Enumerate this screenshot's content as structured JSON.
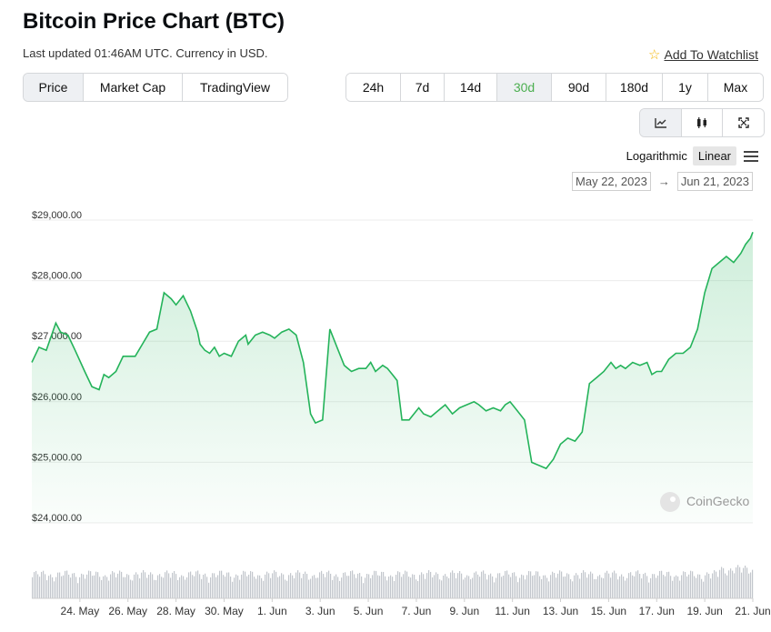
{
  "header": {
    "title": "Bitcoin Price Chart (BTC)",
    "updated": "Last updated 01:46AM UTC. Currency in USD.",
    "watchlist_label": "Add To Watchlist"
  },
  "tabs": [
    {
      "label": "Price",
      "active": true
    },
    {
      "label": "Market Cap",
      "active": false
    },
    {
      "label": "TradingView",
      "active": false
    }
  ],
  "ranges": [
    {
      "label": "24h",
      "active": false
    },
    {
      "label": "7d",
      "active": false
    },
    {
      "label": "14d",
      "active": false
    },
    {
      "label": "30d",
      "active": true
    },
    {
      "label": "90d",
      "active": false
    },
    {
      "label": "180d",
      "active": false
    },
    {
      "label": "1y",
      "active": false
    },
    {
      "label": "Max",
      "active": false
    }
  ],
  "tools": {
    "line_icon": "line-chart-icon",
    "candle_icon": "candlestick-icon",
    "expand_icon": "fullscreen-icon"
  },
  "scale": {
    "log_label": "Logarithmic",
    "linear_label": "Linear",
    "selected": "Linear"
  },
  "date_range": {
    "from": "May 22, 2023",
    "to": "Jun 21, 2023"
  },
  "watermark": "CoinGecko",
  "colors": {
    "line": "#24b35a",
    "fill": "#24b35a",
    "active_range": "#4caf50",
    "volume": "#c2c6cc"
  },
  "chart_data": {
    "type": "area",
    "title": "",
    "ylim": [
      24000,
      29000
    ],
    "y_ticks": [
      29000,
      28000,
      27000,
      26000,
      25000,
      24000
    ],
    "y_tick_labels": [
      "$29,000.00",
      "$28,000.00",
      "$27,000.00",
      "$26,000.00",
      "$25,000.00",
      "$24,000.00"
    ],
    "x_tick_labels": [
      "24. May",
      "26. May",
      "28. May",
      "30. May",
      "1. Jun",
      "3. Jun",
      "5. Jun",
      "7. Jun",
      "9. Jun",
      "11. Jun",
      "13. Jun",
      "15. Jun",
      "17. Jun",
      "19. Jun",
      "21. Jun"
    ],
    "x_tick_days": [
      2,
      4,
      6,
      8,
      10,
      12,
      14,
      16,
      18,
      20,
      22,
      24,
      26,
      28,
      30
    ],
    "series": [
      {
        "x": [
          0,
          0.3,
          0.6,
          1.0,
          1.2,
          1.5,
          1.8,
          2.2,
          2.5,
          2.8,
          3.0,
          3.2,
          3.5,
          3.8,
          4.0,
          4.3,
          4.6,
          4.9,
          5.2,
          5.5,
          5.8,
          6.0,
          6.3,
          6.6,
          6.9,
          7.0,
          7.2,
          7.4,
          7.6,
          7.8,
          8.0,
          8.3,
          8.6,
          8.9,
          9.0,
          9.3,
          9.6,
          9.9,
          10.1,
          10.4,
          10.7,
          11.0,
          11.3,
          11.6,
          11.8,
          12.1,
          12.4,
          12.7,
          13.0,
          13.3,
          13.6,
          13.9,
          14.1,
          14.3,
          14.6,
          14.8,
          15.0,
          15.2,
          15.4,
          15.7,
          15.9,
          16.1,
          16.3,
          16.6,
          16.9,
          17.2,
          17.5,
          17.8,
          18.1,
          18.4,
          18.6,
          18.9,
          19.2,
          19.5,
          19.7,
          19.9,
          20.2,
          20.5,
          20.8,
          21.1,
          21.4,
          21.7,
          22.0,
          22.3,
          22.6,
          22.9,
          23.2,
          23.5,
          23.8,
          24.1,
          24.3,
          24.5,
          24.7,
          25.0,
          25.3,
          25.6,
          25.8,
          26.0,
          26.2,
          26.5,
          26.8,
          27.1,
          27.4,
          27.7,
          28.0,
          28.3,
          28.6,
          28.9,
          29.2,
          29.5,
          29.7,
          29.9,
          30.0
        ],
        "y": [
          26650,
          26900,
          26850,
          27300,
          27150,
          27100,
          26850,
          26500,
          26250,
          26200,
          26450,
          26400,
          26500,
          26750,
          26750,
          26750,
          26950,
          27150,
          27200,
          27800,
          27700,
          27600,
          27750,
          27500,
          27150,
          26950,
          26850,
          26800,
          26900,
          26750,
          26800,
          26750,
          27000,
          27100,
          26950,
          27100,
          27150,
          27100,
          27050,
          27150,
          27200,
          27100,
          26650,
          25800,
          25650,
          25700,
          27200,
          26900,
          26600,
          26500,
          26550,
          26550,
          26650,
          26500,
          26600,
          26550,
          26450,
          26350,
          25700,
          25700,
          25800,
          25900,
          25800,
          25750,
          25850,
          25950,
          25800,
          25900,
          25950,
          26000,
          25950,
          25850,
          25900,
          25850,
          25950,
          26000,
          25850,
          25700,
          25000,
          24950,
          24900,
          25050,
          25300,
          25400,
          25350,
          25500,
          26300,
          26400,
          26500,
          26650,
          26550,
          26600,
          26550,
          26650,
          26600,
          26650,
          26450,
          26500,
          26500,
          26700,
          26800,
          26800,
          26900,
          27200,
          27800,
          28200,
          28300,
          28400,
          28300,
          28450,
          28600,
          28700,
          28800
        ]
      }
    ],
    "volume_note": "trading volume bars shown below price area, no axis printed"
  }
}
